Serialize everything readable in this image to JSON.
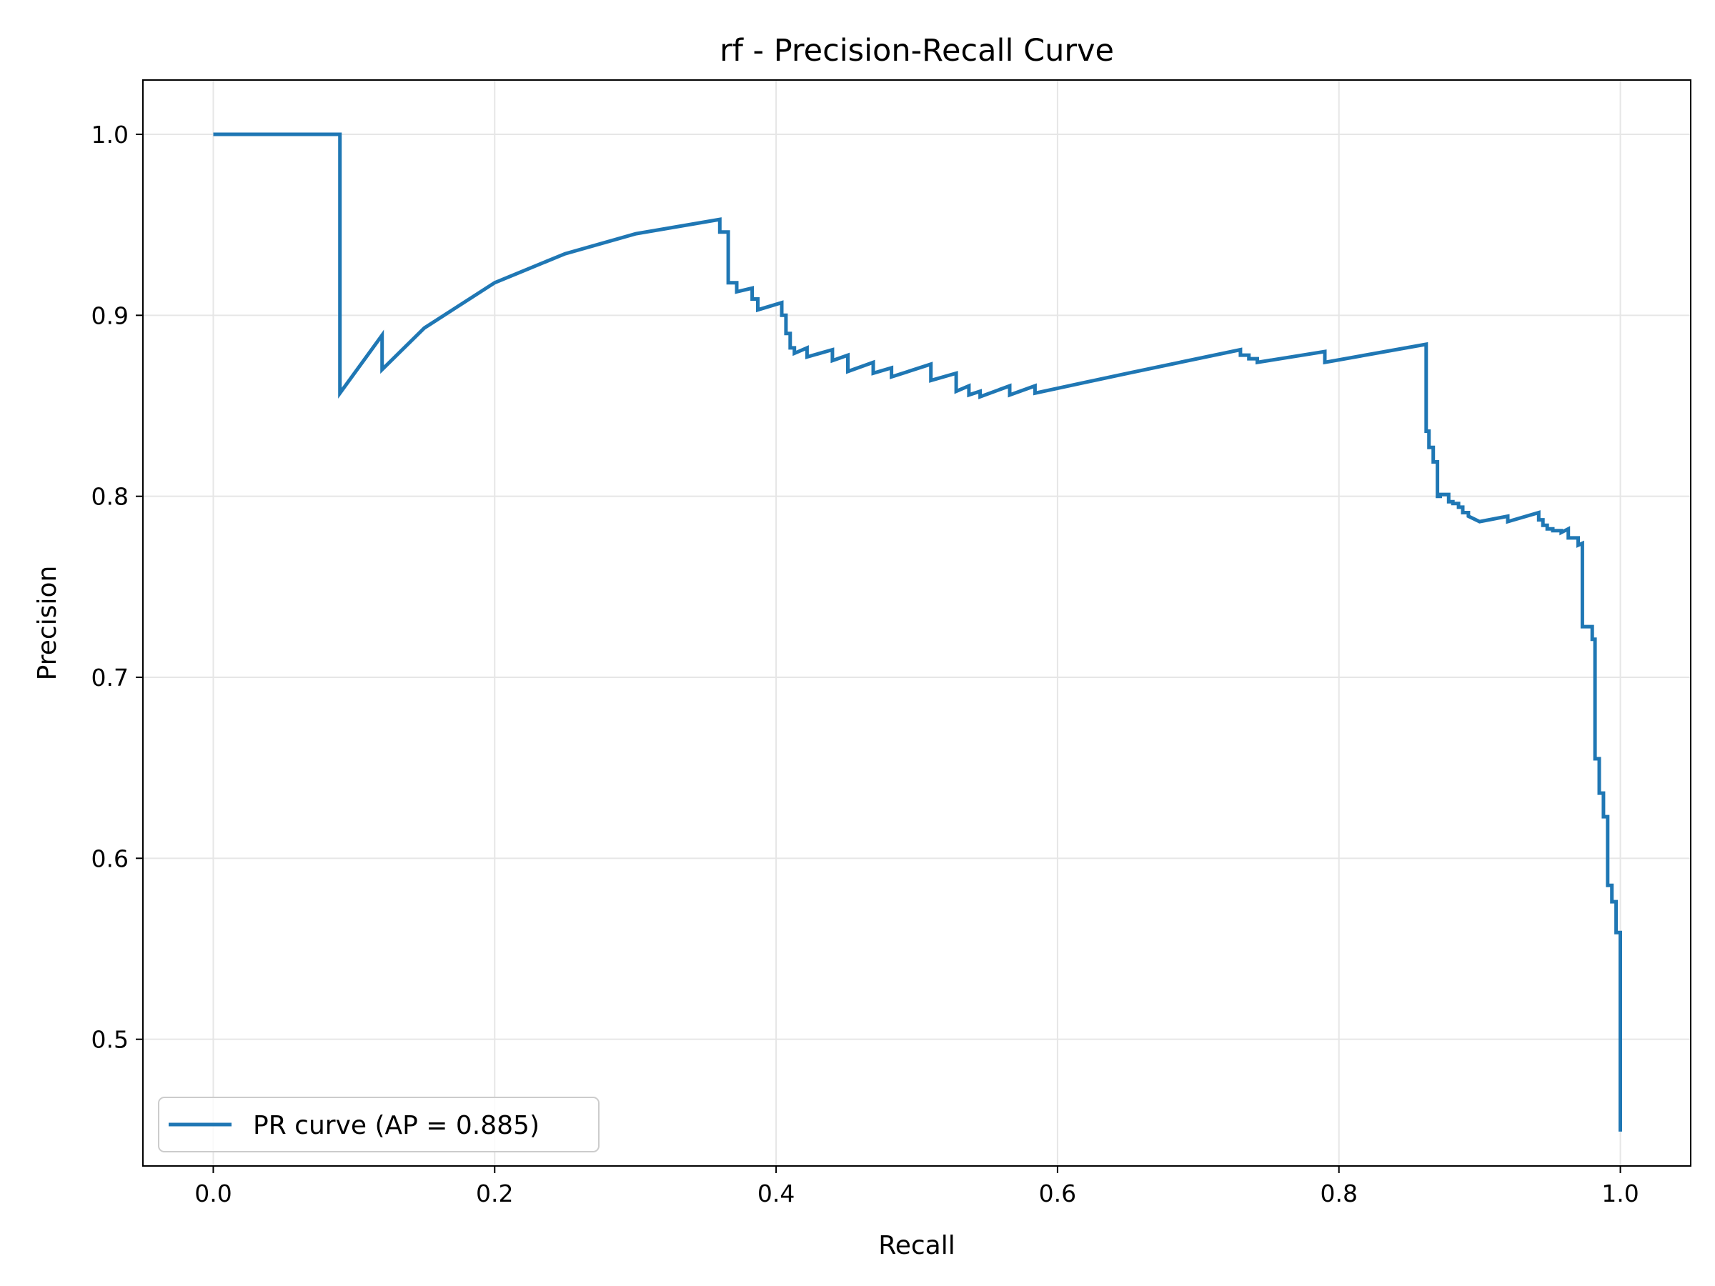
{
  "chart_data": {
    "type": "line",
    "title": "rf - Precision-Recall Curve",
    "xlabel": "Recall",
    "ylabel": "Precision",
    "xlim": [
      -0.05,
      1.05
    ],
    "ylim": [
      0.43,
      1.03
    ],
    "grid": true,
    "legend_position": "lower-left",
    "x_ticks": [
      0.0,
      0.2,
      0.4,
      0.6,
      0.8,
      1.0
    ],
    "x_tick_labels": [
      "0.0",
      "0.2",
      "0.4",
      "0.6",
      "0.8",
      "1.0"
    ],
    "y_ticks": [
      0.5,
      0.6,
      0.7,
      0.8,
      0.9,
      1.0
    ],
    "y_tick_labels": [
      "0.5",
      "0.6",
      "0.7",
      "0.8",
      "0.9",
      "1.0"
    ],
    "colors": {
      "series": "#1f77b4",
      "grid": "#e6e6e6",
      "axes": "#000000"
    },
    "series": [
      {
        "name": "PR curve (AP = 0.885)",
        "x": [
          0.0,
          0.09,
          0.09,
          0.12,
          0.12,
          0.15,
          0.2,
          0.25,
          0.3,
          0.36,
          0.36,
          0.366,
          0.366,
          0.372,
          0.372,
          0.383,
          0.383,
          0.387,
          0.387,
          0.404,
          0.404,
          0.407,
          0.407,
          0.41,
          0.41,
          0.413,
          0.413,
          0.422,
          0.422,
          0.44,
          0.44,
          0.451,
          0.451,
          0.469,
          0.469,
          0.482,
          0.482,
          0.51,
          0.51,
          0.528,
          0.528,
          0.537,
          0.537,
          0.545,
          0.545,
          0.566,
          0.566,
          0.584,
          0.584,
          0.65,
          0.73,
          0.73,
          0.736,
          0.736,
          0.742,
          0.742,
          0.79,
          0.79,
          0.862,
          0.862,
          0.864,
          0.864,
          0.867,
          0.867,
          0.87,
          0.87,
          0.872,
          0.872,
          0.878,
          0.878,
          0.881,
          0.881,
          0.885,
          0.885,
          0.888,
          0.888,
          0.892,
          0.892,
          0.9,
          0.92,
          0.92,
          0.942,
          0.942,
          0.945,
          0.945,
          0.948,
          0.948,
          0.952,
          0.952,
          0.958,
          0.958,
          0.963,
          0.963,
          0.97,
          0.97,
          0.973,
          0.973,
          0.98,
          0.98,
          0.982,
          0.982,
          0.985,
          0.985,
          0.988,
          0.988,
          0.991,
          0.991,
          0.994,
          0.994,
          0.997,
          0.997,
          1.0,
          1.0
        ],
        "y": [
          1.0,
          1.0,
          0.857,
          0.889,
          0.87,
          0.893,
          0.918,
          0.934,
          0.945,
          0.953,
          0.946,
          0.946,
          0.918,
          0.918,
          0.913,
          0.915,
          0.909,
          0.909,
          0.903,
          0.907,
          0.9,
          0.9,
          0.89,
          0.89,
          0.882,
          0.882,
          0.879,
          0.882,
          0.877,
          0.881,
          0.875,
          0.878,
          0.869,
          0.874,
          0.868,
          0.871,
          0.866,
          0.873,
          0.864,
          0.868,
          0.858,
          0.861,
          0.856,
          0.858,
          0.855,
          0.861,
          0.856,
          0.861,
          0.857,
          0.868,
          0.881,
          0.878,
          0.878,
          0.876,
          0.876,
          0.874,
          0.88,
          0.874,
          0.884,
          0.836,
          0.836,
          0.827,
          0.827,
          0.819,
          0.819,
          0.8,
          0.8,
          0.801,
          0.801,
          0.797,
          0.797,
          0.796,
          0.796,
          0.794,
          0.794,
          0.791,
          0.791,
          0.789,
          0.786,
          0.789,
          0.786,
          0.791,
          0.787,
          0.787,
          0.784,
          0.784,
          0.782,
          0.782,
          0.781,
          0.781,
          0.78,
          0.782,
          0.777,
          0.777,
          0.773,
          0.774,
          0.728,
          0.728,
          0.721,
          0.721,
          0.655,
          0.655,
          0.636,
          0.636,
          0.623,
          0.623,
          0.585,
          0.585,
          0.576,
          0.576,
          0.559,
          0.559,
          0.449
        ]
      }
    ]
  }
}
